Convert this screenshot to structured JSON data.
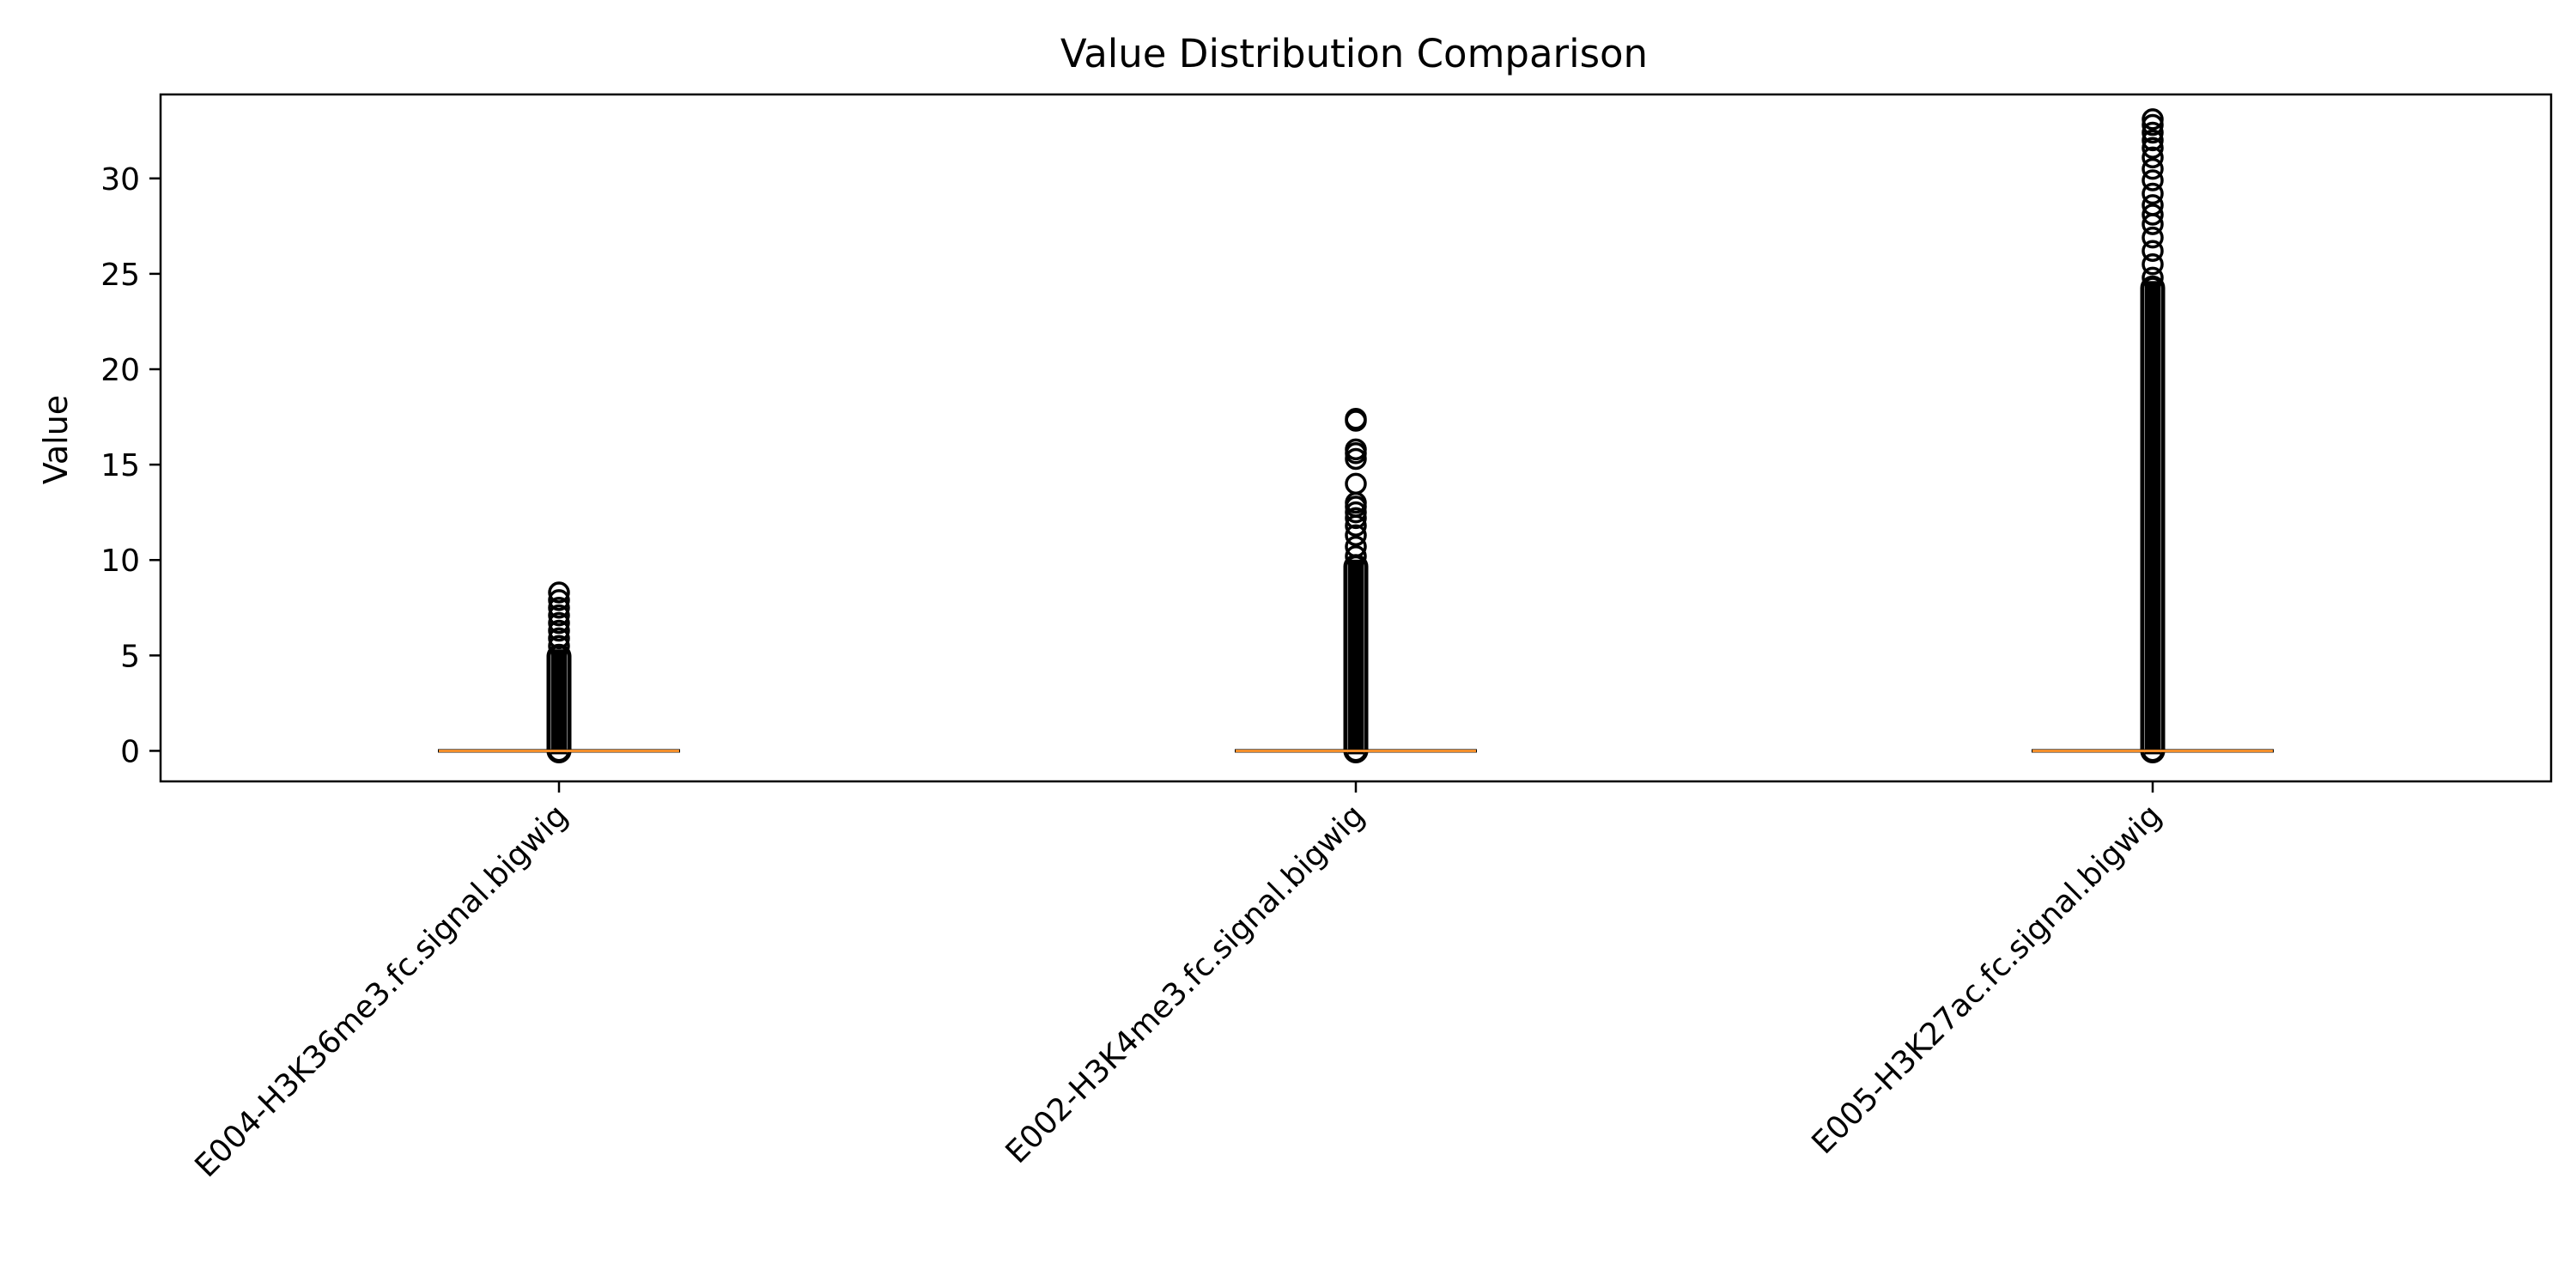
{
  "chart_data": {
    "type": "boxplot",
    "title": "Value Distribution Comparison",
    "xlabel": "",
    "ylabel": "Value",
    "ylim": [
      -1.6,
      34.4
    ],
    "yticks": [
      0,
      5,
      10,
      15,
      20,
      25,
      30
    ],
    "grid": false,
    "legend": "none",
    "categories": [
      "E004-H3K36me3.fc.signal.bigwig",
      "E002-H3K4me3.fc.signal.bigwig",
      "E005-H3K27ac.fc.signal.bigwig"
    ],
    "boxes": [
      {
        "median": 0,
        "q1": 0,
        "q3": 0,
        "whisker_low": 0,
        "whisker_high": 0,
        "fliers_min": 0,
        "fliers_max": 8.3,
        "sparse_fliers": [
          5.5,
          5.9,
          6.3,
          6.7,
          7.1,
          7.5,
          7.9,
          8.3
        ]
      },
      {
        "median": 0,
        "q1": 0,
        "q3": 0,
        "whisker_low": 0,
        "whisker_high": 0,
        "fliers_min": 0,
        "fliers_max": 17.4,
        "sparse_fliers": [
          10.2,
          10.7,
          11.3,
          11.8,
          12.2,
          12.5,
          12.8,
          13.0,
          14.0,
          15.3,
          15.6,
          15.8,
          17.3,
          17.4
        ]
      },
      {
        "median": 0,
        "q1": 0,
        "q3": 0,
        "whisker_low": 0,
        "whisker_high": 0,
        "fliers_min": 0,
        "fliers_max": 33.1,
        "sparse_fliers": [
          24.8,
          25.5,
          26.2,
          26.9,
          27.6,
          28.1,
          28.6,
          29.2,
          29.9,
          30.5,
          31.1,
          31.6,
          32.0,
          32.4,
          32.8,
          33.1
        ]
      }
    ],
    "colors": {
      "median": "#f28e2b",
      "box": "#000000",
      "flier": "#000000",
      "axes": "#000000"
    }
  }
}
